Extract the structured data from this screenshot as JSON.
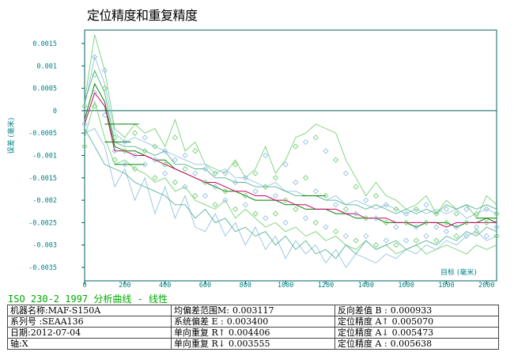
{
  "chart_data": {
    "type": "line",
    "title": "定位精度和重复精度",
    "xlabel": "目标 (毫米)",
    "ylabel": "误差 (毫米)",
    "xlim": [
      0,
      2050
    ],
    "ylim": [
      -0.0038,
      0.0018
    ],
    "x_ticks": [
      0,
      200,
      400,
      600,
      800,
      1000,
      1200,
      1400,
      1600,
      1800,
      2000
    ],
    "y_ticks": [
      0.0015,
      0.001,
      0.0005,
      0,
      -0.0005,
      -0.001,
      -0.0015,
      -0.002,
      -0.0025,
      -0.003,
      -0.0035
    ],
    "y_tick_labels": [
      "0.0015",
      "0.001",
      "0.0005",
      "0",
      "-0.0005",
      "-0.001",
      "-0.0015",
      "-0.002",
      "-0.0025",
      "-0.003",
      "-0.0035"
    ],
    "x": [
      0,
      50,
      100,
      150,
      200,
      250,
      300,
      350,
      400,
      450,
      500,
      550,
      600,
      650,
      700,
      750,
      800,
      850,
      900,
      950,
      1000,
      1050,
      1100,
      1150,
      1200,
      1250,
      1300,
      1350,
      1400,
      1450,
      1500,
      1550,
      1600,
      1650,
      1700,
      1750,
      1800,
      1850,
      1900,
      1950,
      2000,
      2050
    ],
    "series": [
      {
        "role": "mean-forward",
        "color": "#008000",
        "values": [
          -0.0002,
          0.0006,
          0.0002,
          -0.0008,
          -0.0009,
          -0.0009,
          -0.001,
          -0.0011,
          -0.0011,
          -0.0013,
          -0.0014,
          -0.0015,
          -0.0016,
          -0.0017,
          -0.0018,
          -0.0018,
          -0.0019,
          -0.002,
          -0.002,
          -0.002,
          -0.0021,
          -0.0021,
          -0.0022,
          -0.0022,
          -0.0022,
          -0.0023,
          -0.0023,
          -0.0024,
          -0.0024,
          -0.0024,
          -0.0025,
          -0.0025,
          -0.0025,
          -0.0026,
          -0.0025,
          -0.0025,
          -0.0025,
          -0.0026,
          -0.0025,
          -0.0025,
          -0.0024,
          -0.0025
        ]
      },
      {
        "role": "mean-reverse",
        "color": "#cc0066",
        "values": [
          -0.0003,
          0.0004,
          0.0001,
          -0.0009,
          -0.0009,
          -0.001,
          -0.001,
          -0.0011,
          -0.0012,
          -0.0013,
          -0.0014,
          -0.0015,
          -0.0016,
          -0.0016,
          -0.0017,
          -0.0018,
          -0.0018,
          -0.0019,
          -0.0019,
          -0.002,
          -0.002,
          -0.0021,
          -0.0021,
          -0.0022,
          -0.0022,
          -0.0022,
          -0.0023,
          -0.0023,
          -0.0024,
          -0.0024,
          -0.0024,
          -0.0025,
          -0.0025,
          -0.0025,
          -0.0025,
          -0.0025,
          -0.0026,
          -0.0025,
          -0.0025,
          -0.0025,
          -0.0025,
          -0.0025
        ]
      },
      {
        "role": "envelope-upper-1",
        "color": "#66cc66",
        "values": [
          0.0002,
          0.0017,
          0.0009,
          -0.0004,
          -0.0006,
          -0.0003,
          -0.0005,
          -0.0004,
          -0.0008,
          -0.0002,
          -0.0009,
          -0.0007,
          -0.0012,
          -0.0013,
          -0.0014,
          -0.0011,
          -0.0015,
          -0.0013,
          -0.0008,
          -0.0014,
          -0.0011,
          -0.0006,
          -0.0005,
          -0.0003,
          -0.0004,
          -0.0005,
          -0.0011,
          -0.0015,
          -0.0019,
          -0.0016,
          -0.0019,
          -0.002,
          -0.0022,
          -0.0021,
          -0.0019,
          -0.0023,
          -0.002,
          -0.0022,
          -0.0021,
          -0.0024,
          -0.0019,
          -0.0021
        ]
      },
      {
        "role": "envelope-lower-1",
        "color": "#66cc66",
        "values": [
          -0.0006,
          0.0002,
          -0.0006,
          -0.0012,
          -0.0011,
          -0.0013,
          -0.0014,
          -0.0016,
          -0.0015,
          -0.0018,
          -0.0017,
          -0.002,
          -0.0021,
          -0.0022,
          -0.002,
          -0.0024,
          -0.0022,
          -0.0024,
          -0.0026,
          -0.0025,
          -0.0027,
          -0.0026,
          -0.0028,
          -0.0027,
          -0.0029,
          -0.0028,
          -0.003,
          -0.0031,
          -0.0029,
          -0.0031,
          -0.003,
          -0.0032,
          -0.0031,
          -0.003,
          -0.0032,
          -0.0031,
          -0.003,
          -0.0031,
          -0.0032,
          -0.003,
          -0.0031,
          -0.003
        ]
      },
      {
        "role": "envelope-upper-2",
        "color": "#88bbdd",
        "values": [
          0.0001,
          0.0012,
          0.0006,
          -0.0005,
          -0.0007,
          -0.0006,
          -0.0007,
          -0.0008,
          -0.0009,
          -0.001,
          -0.0011,
          -0.0012,
          -0.0012,
          -0.0014,
          -0.0013,
          -0.0015,
          -0.0015,
          -0.0016,
          -0.0017,
          -0.0016,
          -0.0018,
          -0.0018,
          -0.0019,
          -0.0019,
          -0.002,
          -0.0019,
          -0.0021,
          -0.002,
          -0.0021,
          -0.0022,
          -0.0021,
          -0.0022,
          -0.0023,
          -0.0022,
          -0.0023,
          -0.0022,
          -0.0023,
          -0.0022,
          -0.0024,
          -0.0023,
          -0.0022,
          -0.0023
        ]
      },
      {
        "role": "envelope-lower-2",
        "color": "#88bbdd",
        "values": [
          -0.0005,
          -0.0004,
          -0.0008,
          -0.0017,
          -0.0013,
          -0.002,
          -0.0015,
          -0.0023,
          -0.0017,
          -0.0024,
          -0.0019,
          -0.0026,
          -0.0027,
          -0.0023,
          -0.0028,
          -0.0025,
          -0.003,
          -0.0026,
          -0.0031,
          -0.0028,
          -0.0033,
          -0.0029,
          -0.0032,
          -0.003,
          -0.0034,
          -0.0031,
          -0.0035,
          -0.0032,
          -0.0033,
          -0.0034,
          -0.0032,
          -0.0033,
          -0.0031,
          -0.0032,
          -0.003,
          -0.0031,
          -0.0029,
          -0.003,
          -0.0028,
          -0.0027,
          -0.0029,
          -0.0028
        ]
      },
      {
        "role": "envelope-upper-3",
        "color": "#44aa88",
        "values": [
          0.0002,
          0.0009,
          0.0004,
          -0.0007,
          -0.0008,
          -0.0008,
          -0.0009,
          -0.001,
          -0.0009,
          -0.0012,
          -0.0012,
          -0.0013,
          -0.0013,
          -0.0015,
          -0.0015,
          -0.0016,
          -0.0016,
          -0.0017,
          -0.0017,
          -0.0017,
          -0.0018,
          -0.0019,
          -0.0019,
          -0.0019,
          -0.002,
          -0.002,
          -0.0021,
          -0.0021,
          -0.0022,
          -0.0021,
          -0.0022,
          -0.0023,
          -0.0022,
          -0.0023,
          -0.0022,
          -0.0023,
          -0.0021,
          -0.0022,
          -0.0021,
          -0.0022,
          -0.0021,
          -0.0022
        ]
      },
      {
        "role": "envelope-lower-3",
        "color": "#44aa88",
        "values": [
          -0.0004,
          -0.0008,
          -0.0012,
          -0.0013,
          -0.0014,
          -0.0016,
          -0.0017,
          -0.0018,
          -0.0019,
          -0.0021,
          -0.0021,
          -0.0024,
          -0.0022,
          -0.0025,
          -0.0024,
          -0.0027,
          -0.0026,
          -0.0028,
          -0.0027,
          -0.003,
          -0.0028,
          -0.0031,
          -0.0029,
          -0.0032,
          -0.0031,
          -0.0033,
          -0.003,
          -0.0032,
          -0.0029,
          -0.0031,
          -0.003,
          -0.0029,
          -0.0031,
          -0.003,
          -0.0029,
          -0.003,
          -0.0028,
          -0.0029,
          -0.0027,
          -0.0028,
          -0.0026,
          -0.0027
        ]
      }
    ],
    "diamond_markers": {
      "colors": [
        "#66cc66",
        "#88bbdd"
      ],
      "points": [
        [
          0,
          0.0001
        ],
        [
          0,
          -0.0003
        ],
        [
          0,
          -0.0008
        ],
        [
          50,
          0.0012
        ],
        [
          50,
          0.0008
        ],
        [
          50,
          0.0004
        ],
        [
          50,
          0.0001
        ],
        [
          100,
          0.0009
        ],
        [
          100,
          0.0005
        ],
        [
          100,
          -0.0001
        ],
        [
          150,
          -0.0006
        ],
        [
          150,
          -0.0009
        ],
        [
          150,
          -0.0011
        ],
        [
          200,
          -0.0007
        ],
        [
          200,
          -0.0009
        ],
        [
          200,
          -0.0012
        ],
        [
          250,
          -0.0005
        ],
        [
          250,
          -0.001
        ],
        [
          250,
          -0.0013
        ],
        [
          300,
          -0.0006
        ],
        [
          300,
          -0.0009
        ],
        [
          300,
          -0.0012
        ],
        [
          350,
          -0.0008
        ],
        [
          350,
          -0.0011
        ],
        [
          350,
          -0.0015
        ],
        [
          400,
          -0.0009
        ],
        [
          400,
          -0.0012
        ],
        [
          400,
          -0.0014
        ],
        [
          450,
          -0.0006
        ],
        [
          450,
          -0.0011
        ],
        [
          450,
          -0.0016
        ],
        [
          500,
          -0.001
        ],
        [
          500,
          -0.0013
        ],
        [
          500,
          -0.0017
        ],
        [
          550,
          -0.0009
        ],
        [
          550,
          -0.0014
        ],
        [
          550,
          -0.0019
        ],
        [
          600,
          -0.0013
        ],
        [
          600,
          -0.0016
        ],
        [
          600,
          -0.0019
        ],
        [
          650,
          -0.0014
        ],
        [
          650,
          -0.0017
        ],
        [
          650,
          -0.0021
        ],
        [
          700,
          -0.0014
        ],
        [
          700,
          -0.0018
        ],
        [
          700,
          -0.002
        ],
        [
          750,
          -0.0012
        ],
        [
          750,
          -0.0016
        ],
        [
          750,
          -0.0022
        ],
        [
          800,
          -0.0015
        ],
        [
          800,
          -0.0019
        ],
        [
          800,
          -0.0021
        ],
        [
          850,
          -0.0014
        ],
        [
          850,
          -0.0018
        ],
        [
          850,
          -0.0023
        ],
        [
          900,
          -0.001
        ],
        [
          900,
          -0.0017
        ],
        [
          900,
          -0.0024
        ],
        [
          950,
          -0.0015
        ],
        [
          950,
          -0.0019
        ],
        [
          950,
          -0.0023
        ],
        [
          1000,
          -0.0012
        ],
        [
          1000,
          -0.002
        ],
        [
          1000,
          -0.0025
        ],
        [
          1050,
          -0.0008
        ],
        [
          1050,
          -0.0016
        ],
        [
          1050,
          -0.0022
        ],
        [
          1100,
          -0.0007
        ],
        [
          1100,
          -0.0015
        ],
        [
          1100,
          -0.0024
        ],
        [
          1150,
          -0.0006
        ],
        [
          1150,
          -0.0018
        ],
        [
          1150,
          -0.0025
        ],
        [
          1200,
          -0.0009
        ],
        [
          1200,
          -0.0019
        ],
        [
          1200,
          -0.0026
        ],
        [
          1250,
          -0.0011
        ],
        [
          1250,
          -0.0021
        ],
        [
          1250,
          -0.0027
        ],
        [
          1300,
          -0.0014
        ],
        [
          1300,
          -0.0022
        ],
        [
          1300,
          -0.0028
        ],
        [
          1350,
          -0.0017
        ],
        [
          1350,
          -0.0023
        ],
        [
          1350,
          -0.0029
        ],
        [
          1400,
          -0.002
        ],
        [
          1400,
          -0.0024
        ],
        [
          1400,
          -0.0028
        ],
        [
          1450,
          -0.0019
        ],
        [
          1450,
          -0.0024
        ],
        [
          1450,
          -0.003
        ],
        [
          1500,
          -0.0021
        ],
        [
          1500,
          -0.0025
        ],
        [
          1500,
          -0.0029
        ],
        [
          1550,
          -0.0022
        ],
        [
          1550,
          -0.0026
        ],
        [
          1550,
          -0.003
        ],
        [
          1600,
          -0.0023
        ],
        [
          1600,
          -0.0025
        ],
        [
          1600,
          -0.0029
        ],
        [
          1650,
          -0.0022
        ],
        [
          1650,
          -0.0026
        ],
        [
          1650,
          -0.0029
        ],
        [
          1700,
          -0.0021
        ],
        [
          1700,
          -0.0025
        ],
        [
          1700,
          -0.0028
        ],
        [
          1750,
          -0.0023
        ],
        [
          1750,
          -0.0026
        ],
        [
          1750,
          -0.0029
        ],
        [
          1800,
          -0.0022
        ],
        [
          1800,
          -0.0025
        ],
        [
          1800,
          -0.0027
        ],
        [
          1850,
          -0.0023
        ],
        [
          1850,
          -0.0026
        ],
        [
          1850,
          -0.0028
        ],
        [
          1900,
          -0.0022
        ],
        [
          1900,
          -0.0025
        ],
        [
          1900,
          -0.0028
        ],
        [
          1950,
          -0.0023
        ],
        [
          1950,
          -0.0026
        ],
        [
          1950,
          -0.0027
        ],
        [
          2000,
          -0.0022
        ],
        [
          2000,
          -0.0025
        ],
        [
          2000,
          -0.0028
        ],
        [
          2050,
          -0.0023
        ],
        [
          2050,
          -0.0026
        ],
        [
          2050,
          -0.0028
        ]
      ]
    },
    "short_segments": [
      {
        "color": "#008000",
        "from": [
          100,
          -0.0003
        ],
        "to": [
          270,
          -0.0003
        ]
      },
      {
        "color": "#008000",
        "from": [
          100,
          -0.0007
        ],
        "to": [
          230,
          -0.0007
        ]
      },
      {
        "color": "#008000",
        "from": [
          150,
          -0.0012
        ],
        "to": [
          300,
          -0.0012
        ]
      },
      {
        "color": "#008000",
        "from": [
          1080,
          -0.0019
        ],
        "to": [
          1200,
          -0.0019
        ]
      },
      {
        "color": "#008000",
        "from": [
          1950,
          -0.0024
        ],
        "to": [
          2050,
          -0.0024
        ]
      }
    ],
    "zero_line": 0,
    "grid": false
  },
  "footer": {
    "title": "ISO 230-2 1997 分析曲线 - 线性",
    "rows": [
      {
        "c1": "机器名称:MAF-S150A",
        "c2_label": "均偏差范围M:",
        "c2_value": "0.003117",
        "c3_label": "反向差值 B :",
        "c3_value": "0.000933"
      },
      {
        "c1": "系列号 :SEAA136",
        "c2_label": "系统偏差 E :",
        "c2_value": "0.003400",
        "c3_label": "定位精度 A↑",
        "c3_value": "0.005070"
      },
      {
        "c1": "日期:2012-07-04",
        "c2_label": "单向重复 R↑",
        "c2_value": "0.004406",
        "c3_label": "定位精度 A↓",
        "c3_value": "0.005473"
      },
      {
        "c1": "轴:X",
        "c2_label": "单向重复 R↓",
        "c2_value": "0.003555",
        "c3_label": "定位精度 A :",
        "c3_value": "0.005638"
      }
    ]
  }
}
